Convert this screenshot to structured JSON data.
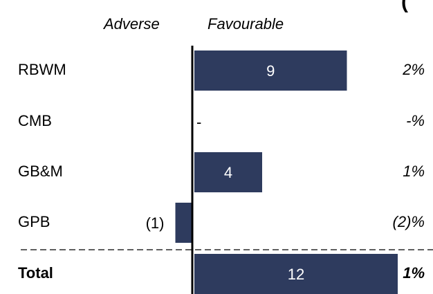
{
  "header": {
    "adverse": "Adverse",
    "favourable": "Favourable",
    "top_cut": "("
  },
  "chart_data": {
    "type": "bar",
    "orientation": "horizontal",
    "categories": [
      "RBWM",
      "CMB",
      "GB&M",
      "GPB",
      "Total"
    ],
    "values": [
      9,
      0,
      4,
      -1,
      12
    ],
    "value_labels": [
      "9",
      "-",
      "4",
      "(1)",
      "12"
    ],
    "percent_labels": [
      "2%",
      "-%",
      "1%",
      "(2)%",
      "1%"
    ],
    "bar_color": "#2e3b5e",
    "total_separator": "dashed"
  }
}
